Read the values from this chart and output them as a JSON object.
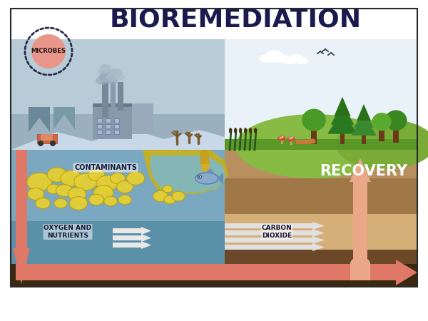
{
  "title": "BIOREMEDIATION",
  "title_color": "#1a1a4e",
  "title_fontsize": 26,
  "bg_color": "#ffffff",
  "microbes_label": "MICROBES",
  "microbes_circle_color": "#e8968a",
  "microbes_ring_color": "#2a2a4e",
  "recovery_label": "RECOVERY",
  "contaminants_label": "CONTAMINANTS",
  "oxygen_label": "OXYGEN AND\nNUTRIENTS",
  "co2_label": "CARBON\nDIOXIDE",
  "sky_left": "#c8d8e8",
  "sky_right": "#e8f2f8",
  "water_blue": "#8ab8d0",
  "water_contaminated": "#7aa8c0",
  "water_dark": "#5a90a8",
  "pool_yellow": "#d4b820",
  "pool_blue": "#90c0d8",
  "soil_brown1": "#b89060",
  "soil_brown2": "#a07848",
  "soil_tan": "#d4b078",
  "soil_dark": "#6a4828",
  "soil_darkest": "#3a2810",
  "green_light": "#88bb44",
  "green_mid": "#5a9828",
  "green_dark": "#3a7818",
  "contaminant_fill": "#e8d030",
  "contaminant_edge": "#b8a010",
  "arrow_salmon": "#e07868",
  "arrow_light": "#eaa888",
  "arrow_white": "#f0f0f0",
  "factory_gray": "#8899aa",
  "factory_light": "#aabbcc",
  "smoke_col": "#9aaabb",
  "hill_blue": "#9ab0c0",
  "fish_col": "#7899bb",
  "border_color": "#2a2a2a"
}
